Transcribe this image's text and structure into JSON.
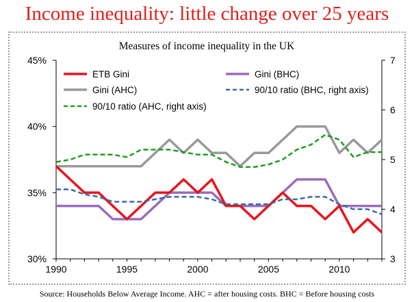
{
  "header": {
    "title": "Income inequality: little change over 25 years"
  },
  "footer": {
    "source": "Source: Households Below Average Income. AHC = after housing costs. BHC = Before housing costs"
  },
  "chart_data": {
    "type": "line",
    "title": "Measures of income inequality in the UK",
    "x": [
      1990,
      1991,
      1992,
      1993,
      1994,
      1995,
      1996,
      1997,
      1998,
      1999,
      2000,
      2001,
      2002,
      2003,
      2004,
      2005,
      2006,
      2007,
      2008,
      2009,
      2010,
      2011,
      2012,
      2013
    ],
    "x_ticks": [
      "1990",
      "1995",
      "2000",
      "2005",
      "2010"
    ],
    "y_left": {
      "ticks": [
        "30%",
        "35%",
        "40%",
        "45%"
      ],
      "ylim": [
        30,
        45
      ]
    },
    "y_right": {
      "ticks": [
        "3",
        "4",
        "5",
        "6",
        "7"
      ],
      "ylim": [
        3,
        7
      ]
    },
    "grid": false,
    "legend_position": "top",
    "series": [
      {
        "name": "ETB Gini",
        "axis": "left",
        "color": "#e8141b",
        "dash": "solid",
        "values": [
          37,
          36,
          35,
          35,
          34,
          33,
          34,
          35,
          35,
          36,
          35,
          36,
          34,
          34,
          33,
          34,
          35,
          34,
          34,
          33,
          34,
          32,
          33,
          32
        ]
      },
      {
        "name": "Gini (BHC)",
        "axis": "left",
        "color": "#9b6bbd",
        "dash": "solid",
        "values": [
          34,
          34,
          34,
          34,
          33,
          33,
          33,
          34,
          35,
          35,
          35,
          35,
          34,
          34,
          34,
          34,
          35,
          36,
          36,
          36,
          34,
          34,
          34,
          34
        ]
      },
      {
        "name": "Gini (AHC)",
        "axis": "left",
        "color": "#999999",
        "dash": "solid",
        "values": [
          37,
          37,
          37,
          37,
          37,
          37,
          37,
          38,
          39,
          38,
          39,
          38,
          38,
          37,
          38,
          38,
          39,
          40,
          40,
          40,
          38,
          39,
          38,
          39
        ]
      },
      {
        "name": "90/10 ratio (BHC, right axis)",
        "axis": "right",
        "color": "#3a6aa6",
        "dash": "dash",
        "values": [
          4.4,
          4.4,
          4.3,
          4.25,
          4.15,
          4.15,
          4.15,
          4.2,
          4.25,
          4.25,
          4.25,
          4.2,
          4.1,
          4.1,
          4.1,
          4.1,
          4.2,
          4.2,
          4.25,
          4.25,
          4.1,
          4.0,
          4.0,
          3.9
        ]
      },
      {
        "name": "90/10 ratio (AHC, right axis)",
        "axis": "right",
        "color": "#1a9e1a",
        "dash": "dash",
        "values": [
          4.95,
          5.0,
          5.1,
          5.1,
          5.1,
          5.05,
          5.2,
          5.2,
          5.2,
          5.15,
          5.1,
          5.1,
          4.95,
          4.85,
          4.85,
          4.9,
          5.0,
          5.2,
          5.3,
          5.5,
          5.4,
          5.05,
          5.15,
          5.15
        ]
      }
    ]
  }
}
